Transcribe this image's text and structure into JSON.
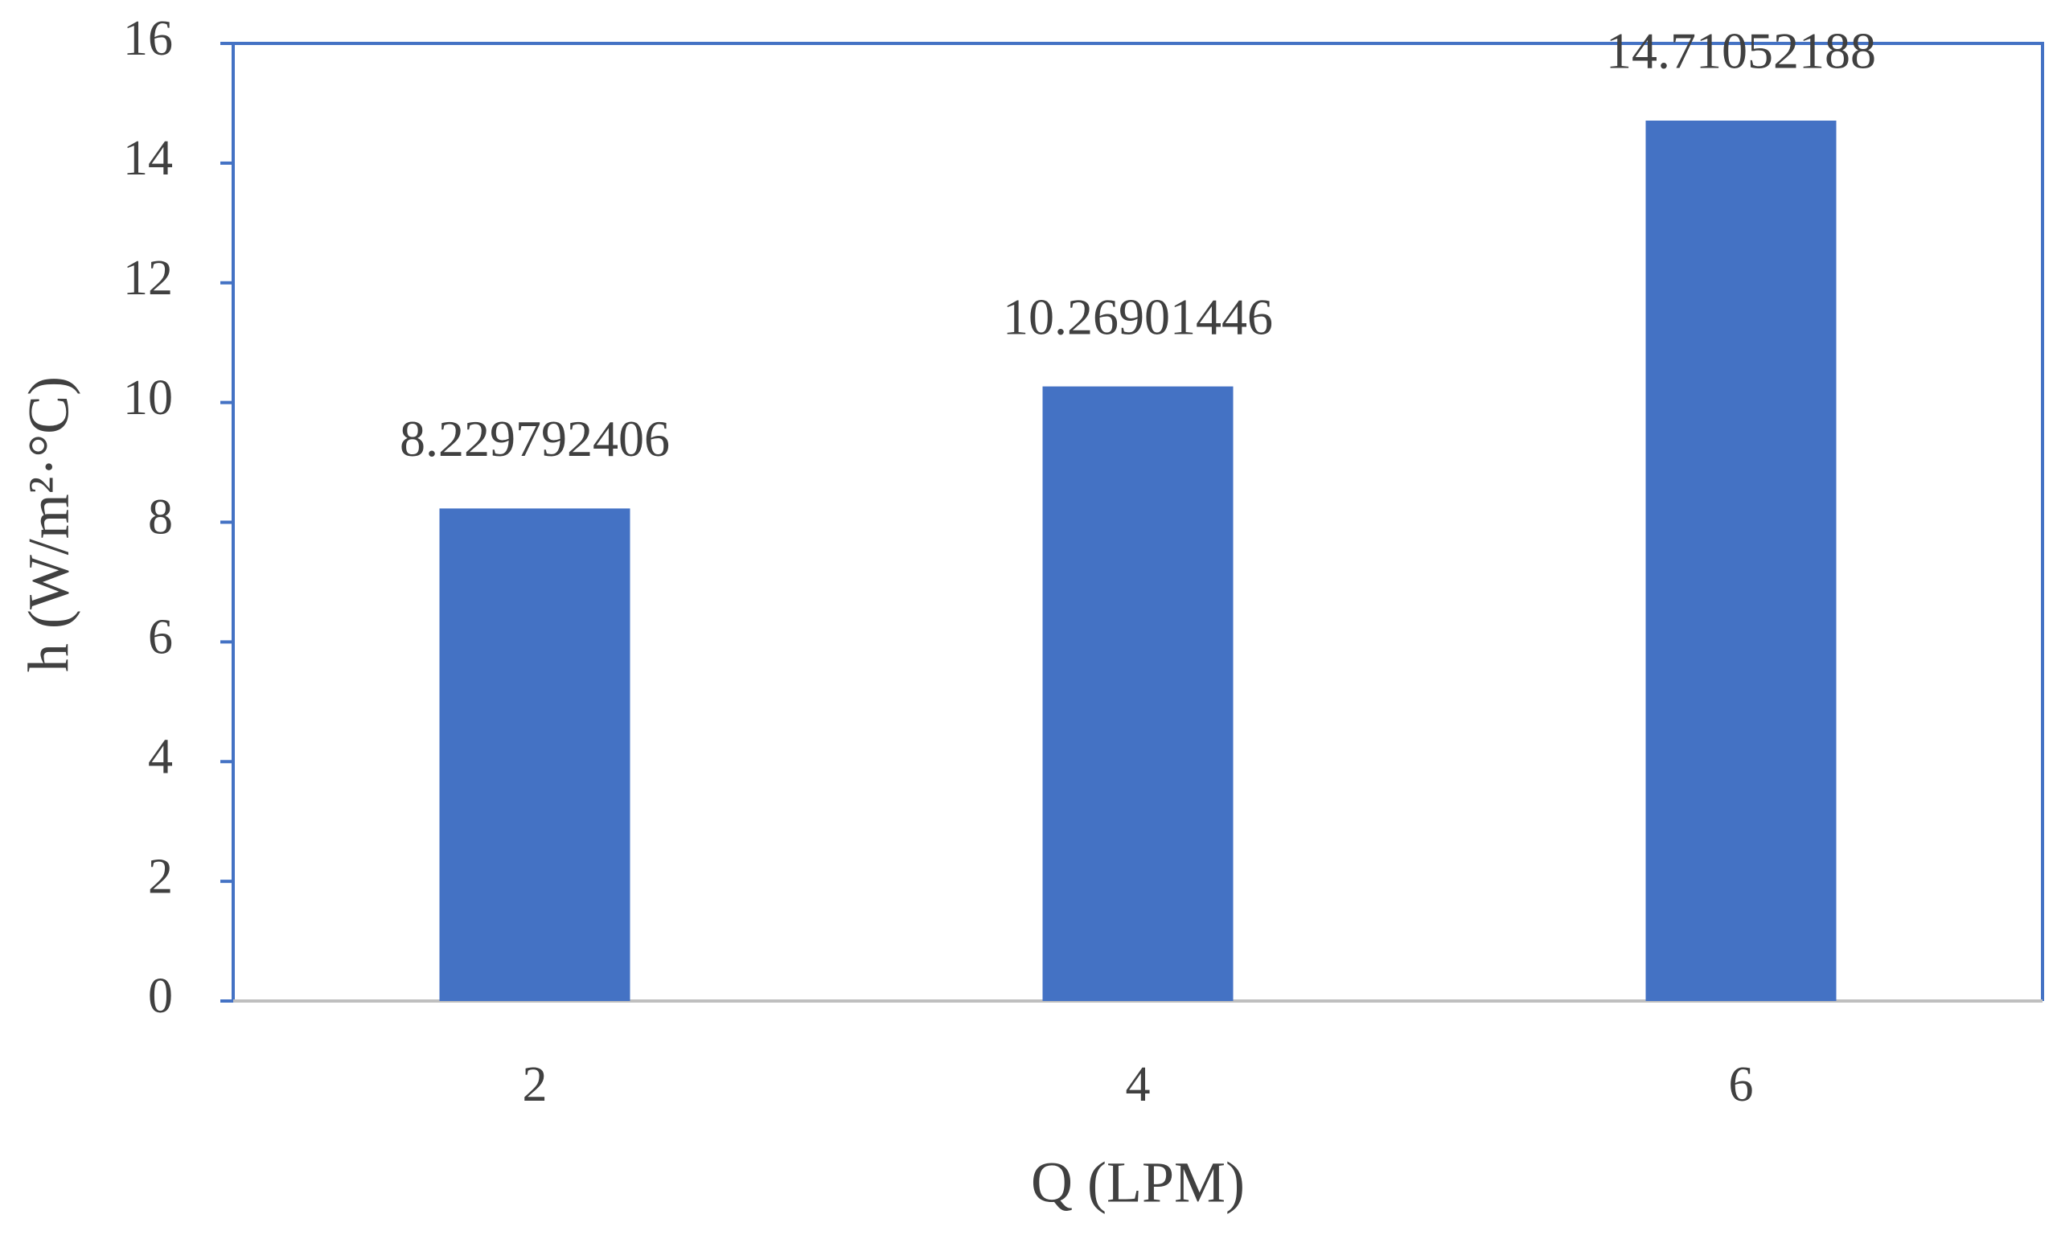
{
  "chart_data": {
    "type": "bar",
    "categories": [
      "2",
      "4",
      "6"
    ],
    "values": [
      8.229792406,
      10.26901446,
      14.71052188
    ],
    "color": "#4472c4",
    "x_label": "Q (LPM)",
    "y_label": "h (W/m²·°C)",
    "ylim": [
      0,
      16
    ],
    "yticks": [
      0,
      2,
      4,
      6,
      8,
      10,
      12,
      14,
      16
    ],
    "grid": false
  }
}
